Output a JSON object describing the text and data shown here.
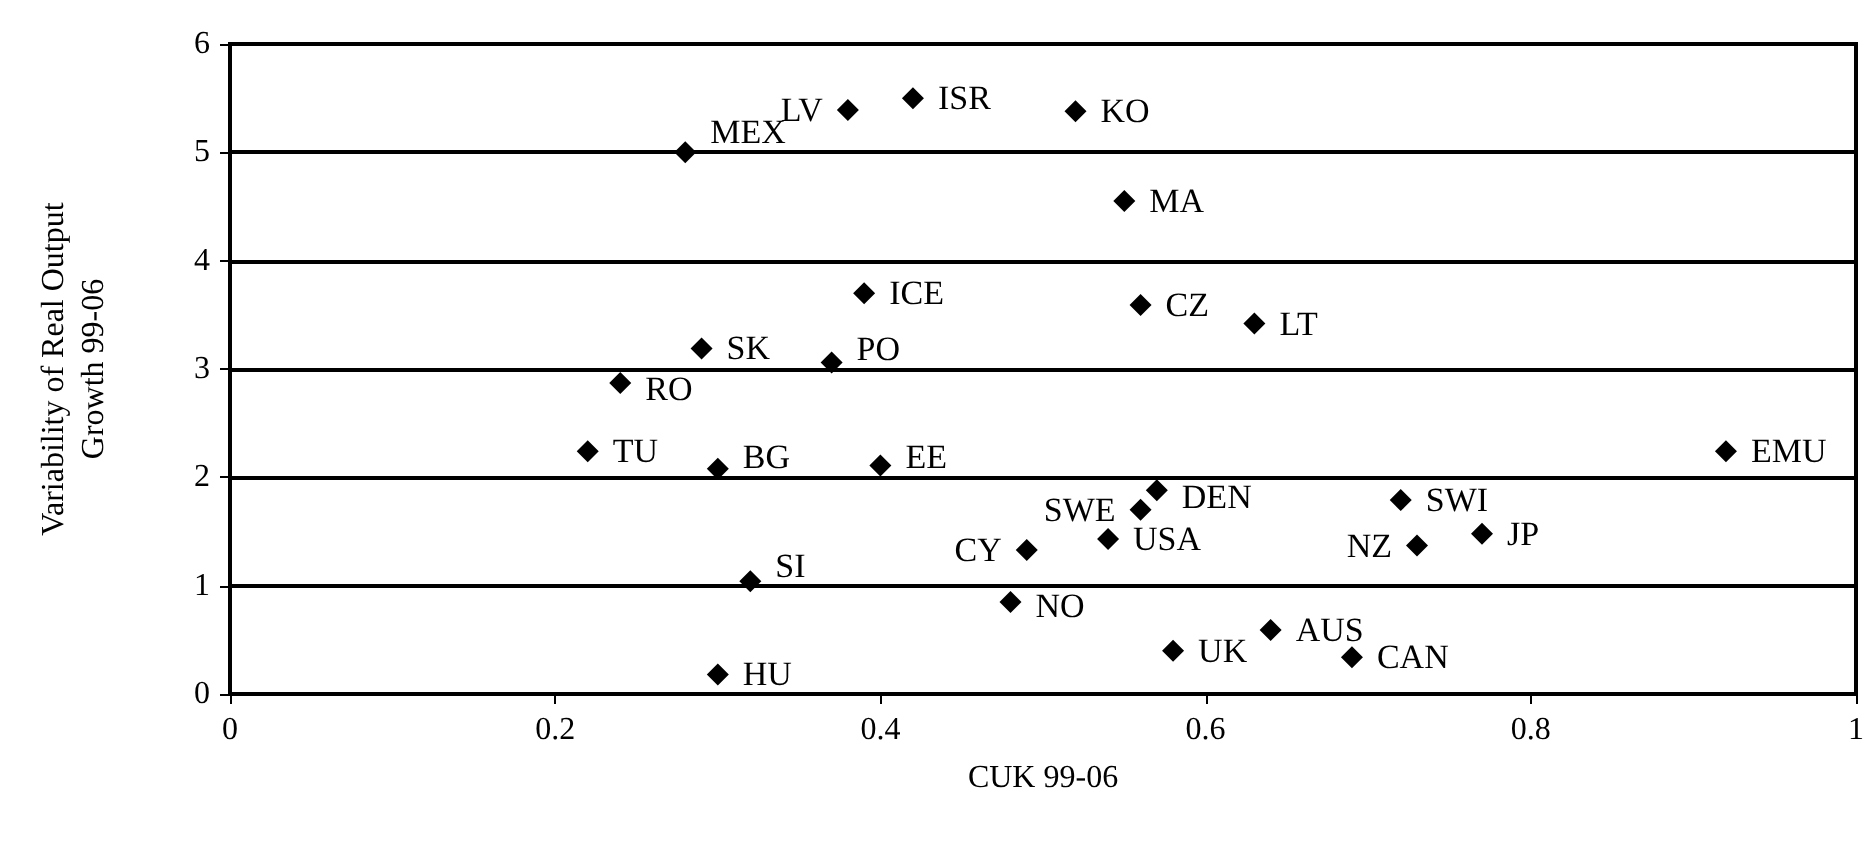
{
  "chart_data": {
    "type": "scatter",
    "xlabel": "CUK 99-06",
    "ylabel": "Variability of Real Output\nGrowth 99-06",
    "xlim": [
      0,
      1
    ],
    "xticks": [
      0,
      0.2,
      0.4,
      0.6,
      0.8,
      1
    ],
    "ylim": [
      0,
      6
    ],
    "yticks": [
      0,
      1,
      2,
      3,
      4,
      5,
      6
    ],
    "grid": "y",
    "legend": false,
    "marker": "diamond",
    "series": [
      {
        "name": "MEX",
        "color": "#000000",
        "x": [
          0.28
        ],
        "values": [
          5.0
        ]
      },
      {
        "name": "LV",
        "color": "#000000",
        "x": [
          0.38
        ],
        "values": [
          5.39
        ]
      },
      {
        "name": "ISR",
        "color": "#000000",
        "x": [
          0.42
        ],
        "values": [
          5.5
        ]
      },
      {
        "name": "KO",
        "color": "#000000",
        "x": [
          0.52
        ],
        "values": [
          5.38
        ]
      },
      {
        "name": "MA",
        "color": "#000000",
        "x": [
          0.55
        ],
        "values": [
          4.55
        ]
      },
      {
        "name": "ICE",
        "color": "#000000",
        "x": [
          0.39
        ],
        "values": [
          3.7
        ]
      },
      {
        "name": "CZ",
        "color": "#000000",
        "x": [
          0.56
        ],
        "values": [
          3.59
        ]
      },
      {
        "name": "LT",
        "color": "#000000",
        "x": [
          0.63
        ],
        "values": [
          3.42
        ]
      },
      {
        "name": "SK",
        "color": "#000000",
        "x": [
          0.29
        ],
        "values": [
          3.19
        ]
      },
      {
        "name": "PO",
        "color": "#000000",
        "x": [
          0.37
        ],
        "values": [
          3.06
        ]
      },
      {
        "name": "RO",
        "color": "#000000",
        "x": [
          0.24
        ],
        "values": [
          2.87
        ]
      },
      {
        "name": "TU",
        "color": "#000000",
        "x": [
          0.22
        ],
        "values": [
          2.24
        ]
      },
      {
        "name": "BG",
        "color": "#000000",
        "x": [
          0.3
        ],
        "values": [
          2.08
        ]
      },
      {
        "name": "EE",
        "color": "#000000",
        "x": [
          0.4
        ],
        "values": [
          2.11
        ]
      },
      {
        "name": "EMU",
        "color": "#000000",
        "x": [
          0.92
        ],
        "values": [
          2.24
        ]
      },
      {
        "name": "DEN",
        "color": "#000000",
        "x": [
          0.57
        ],
        "values": [
          1.88
        ]
      },
      {
        "name": "SWI",
        "color": "#000000",
        "x": [
          0.72
        ],
        "values": [
          1.79
        ]
      },
      {
        "name": "SWE",
        "color": "#000000",
        "x": [
          0.56
        ],
        "values": [
          1.7
        ]
      },
      {
        "name": "JP",
        "color": "#000000",
        "x": [
          0.77
        ],
        "values": [
          1.48
        ]
      },
      {
        "name": "USA",
        "color": "#000000",
        "x": [
          0.54
        ],
        "values": [
          1.43
        ]
      },
      {
        "name": "NZ",
        "color": "#000000",
        "x": [
          0.73
        ],
        "values": [
          1.37
        ]
      },
      {
        "name": "CY",
        "color": "#000000",
        "x": [
          0.49
        ],
        "values": [
          1.33
        ]
      },
      {
        "name": "SI",
        "color": "#000000",
        "x": [
          0.32
        ],
        "values": [
          1.04
        ]
      },
      {
        "name": "NO",
        "color": "#000000",
        "x": [
          0.48
        ],
        "values": [
          0.85
        ]
      },
      {
        "name": "AUS",
        "color": "#000000",
        "x": [
          0.64
        ],
        "values": [
          0.59
        ]
      },
      {
        "name": "UK",
        "color": "#000000",
        "x": [
          0.58
        ],
        "values": [
          0.4
        ]
      },
      {
        "name": "CAN",
        "color": "#000000",
        "x": [
          0.69
        ],
        "values": [
          0.34
        ]
      },
      {
        "name": "HU",
        "color": "#000000",
        "x": [
          0.3
        ],
        "values": [
          0.18
        ]
      }
    ]
  }
}
